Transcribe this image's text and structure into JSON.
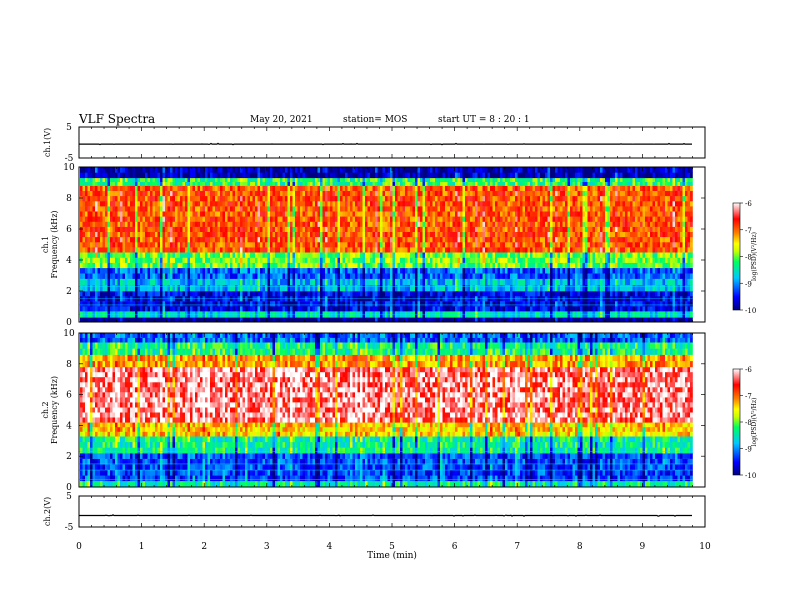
{
  "header": {
    "title": "VLF Spectra",
    "date": "May 20, 2021",
    "station": "station= MOS",
    "start_ut": "start  UT  =   8  : 20 : 1"
  },
  "chart_data": [
    {
      "type": "line",
      "panel": "waveform-ch1",
      "ylabel": "ch.1(V)",
      "ylim": [
        -5,
        5
      ],
      "yticks": [
        5,
        -5
      ],
      "xlim": [
        0,
        10
      ],
      "series": [
        {
          "values_description": "",
          "level": -0.5
        }
      ]
    },
    {
      "type": "heatmap",
      "panel": "spectrogram-ch1",
      "ylabel": "ch.1 Frequency (kHz)",
      "ylim": [
        0,
        10
      ],
      "yticks": [
        0,
        2,
        4,
        6,
        8,
        10
      ],
      "xlim": [
        0,
        10
      ],
      "data_until_min": 9.8,
      "bands": [
        {
          "f_lo": 0,
          "f_hi": 0.3,
          "level": -10
        },
        {
          "f_lo": 0.3,
          "f_hi": 0.7,
          "level": -8.6
        },
        {
          "f_lo": 0.7,
          "f_hi": 2.0,
          "level": -9.6
        },
        {
          "f_lo": 2.0,
          "f_hi": 2.8,
          "level": -8.8
        },
        {
          "f_lo": 2.8,
          "f_hi": 3.5,
          "level": -9.2
        },
        {
          "f_lo": 3.5,
          "f_hi": 4.5,
          "level": -8.0
        },
        {
          "f_lo": 4.5,
          "f_hi": 8.8,
          "level": -6.9
        },
        {
          "f_lo": 8.8,
          "f_hi": 9.3,
          "level": -8.2
        },
        {
          "f_lo": 9.3,
          "f_hi": 10,
          "level": -9.8
        }
      ],
      "colorbar": {
        "label": "log(PSD)(V²/Hz)",
        "ticks": [
          -6,
          -7,
          -8,
          -9,
          -10
        ],
        "range": [
          -10,
          -6
        ]
      }
    },
    {
      "type": "heatmap",
      "panel": "spectrogram-ch2",
      "ylabel": "ch.2 Frequency (kHz)",
      "ylim": [
        0,
        10
      ],
      "yticks": [
        0,
        2,
        4,
        6,
        8,
        10
      ],
      "xlim": [
        0,
        10
      ],
      "data_until_min": 9.8,
      "bands": [
        {
          "f_lo": 0,
          "f_hi": 0.4,
          "level": -8.4
        },
        {
          "f_lo": 0.4,
          "f_hi": 2.2,
          "level": -9.3
        },
        {
          "f_lo": 2.2,
          "f_hi": 3.3,
          "level": -8.4
        },
        {
          "f_lo": 3.3,
          "f_hi": 4.2,
          "level": -7.4
        },
        {
          "f_lo": 4.2,
          "f_hi": 7.8,
          "level": -6.3
        },
        {
          "f_lo": 7.8,
          "f_hi": 8.6,
          "level": -7.2
        },
        {
          "f_lo": 8.6,
          "f_hi": 9.4,
          "level": -8.3
        },
        {
          "f_lo": 9.4,
          "f_hi": 10,
          "level": -9.2
        }
      ],
      "colorbar": {
        "label": "log(PSD)(V²/Hz)",
        "ticks": [
          -6,
          -7,
          -8,
          -9,
          -10
        ],
        "range": [
          -10,
          -6
        ]
      }
    },
    {
      "type": "line",
      "panel": "waveform-ch2",
      "ylabel": "ch.2(V)",
      "ylim": [
        -5,
        5
      ],
      "yticks": [
        5,
        -5
      ],
      "xlim": [
        0,
        10
      ],
      "series": [
        {
          "values_description": "",
          "level": -1.3
        }
      ]
    }
  ],
  "xaxis": {
    "label": "Time  (min)",
    "range": [
      0,
      10
    ],
    "ticks": [
      "0",
      "1",
      "2",
      "3",
      "4",
      "5",
      "6",
      "7",
      "8",
      "9",
      "10"
    ]
  },
  "colors": {
    "scale": [
      "#000080",
      "#0000ff",
      "#00c8ff",
      "#00ff60",
      "#c8ff00",
      "#ffff00",
      "#ff8000",
      "#ff0000",
      "#ffffff"
    ]
  }
}
